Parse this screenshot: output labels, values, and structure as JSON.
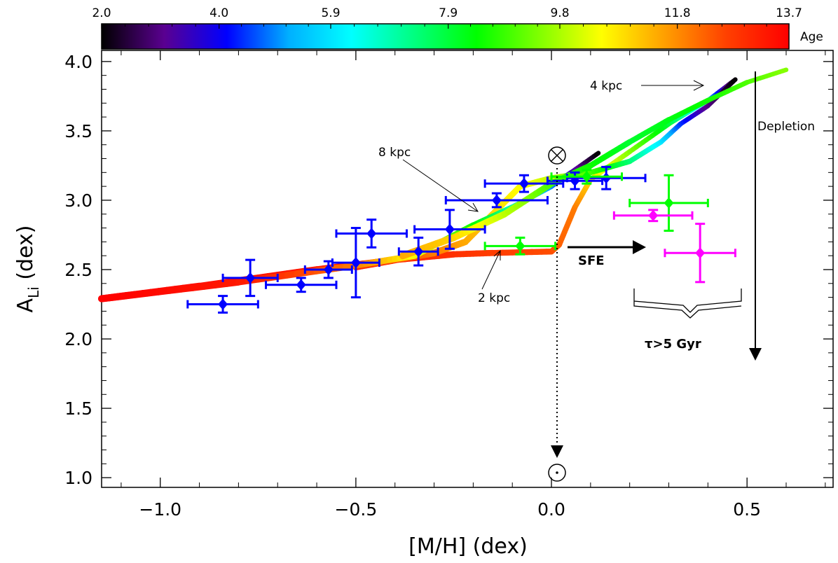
{
  "chart_data": {
    "type": "scatter",
    "xlabel": "[M/H] (dex)",
    "ylabel": "A",
    "ylabel_sub": "Li",
    "ylabel_unit": " (dex)",
    "xlim": [
      -1.15,
      0.72
    ],
    "ylim": [
      0.93,
      4.08
    ],
    "x_ticks": [
      -1.0,
      -0.5,
      0.0,
      0.5
    ],
    "x_tick_labels": [
      "−1.0",
      "−0.5",
      "0.0",
      "0.5"
    ],
    "y_ticks": [
      1.0,
      1.5,
      2.0,
      2.5,
      3.0,
      3.5,
      4.0
    ],
    "y_tick_labels": [
      "1.0",
      "1.5",
      "2.0",
      "2.5",
      "3.0",
      "3.5",
      "4.0"
    ],
    "grid": false,
    "colorbar": {
      "title": "Age",
      "ticks": [
        2.0,
        4.0,
        5.9,
        7.9,
        9.8,
        11.8,
        13.7
      ],
      "tick_labels": [
        "2.0",
        "4.0",
        "5.9",
        "7.9",
        "9.8",
        "11.8",
        "13.7"
      ],
      "range": [
        2.0,
        13.7
      ],
      "colors": [
        "#000000",
        "#5a0090",
        "#0000ff",
        "#00b0ff",
        "#00ffff",
        "#00ff80",
        "#00ff00",
        "#80ff00",
        "#ffff00",
        "#ffa000",
        "#ff4000",
        "#ff0000"
      ]
    },
    "tracks": [
      {
        "name": "2 kpc",
        "points": [
          [
            -1.15,
            2.29
          ],
          [
            -0.9,
            2.38
          ],
          [
            -0.6,
            2.5
          ],
          [
            -0.4,
            2.57
          ],
          [
            -0.25,
            2.61
          ],
          [
            -0.15,
            2.62
          ],
          [
            0.0,
            2.63
          ],
          [
            0.02,
            2.68
          ],
          [
            0.06,
            2.95
          ],
          [
            0.1,
            3.15
          ],
          [
            0.2,
            3.35
          ],
          [
            0.3,
            3.55
          ],
          [
            0.4,
            3.72
          ],
          [
            0.47,
            3.87
          ]
        ],
        "ages": [
          13.7,
          13.5,
          13.3,
          13.1,
          12.9,
          12.7,
          12.5,
          12.3,
          12.0,
          11.0,
          9.5,
          8.0,
          5.5,
          2.0
        ]
      },
      {
        "name": "4 kpc",
        "points": [
          [
            -0.5,
            2.52
          ],
          [
            -0.4,
            2.57
          ],
          [
            -0.3,
            2.62
          ],
          [
            -0.22,
            2.7
          ],
          [
            -0.15,
            2.9
          ],
          [
            -0.08,
            3.1
          ],
          [
            0.0,
            3.16
          ],
          [
            0.1,
            3.2
          ],
          [
            0.2,
            3.28
          ],
          [
            0.28,
            3.42
          ],
          [
            0.33,
            3.55
          ],
          [
            0.4,
            3.68
          ],
          [
            0.47,
            3.87
          ]
        ],
        "ages": [
          13.0,
          12.6,
          12.0,
          11.5,
          11.0,
          10.5,
          10.0,
          9.0,
          7.5,
          6.0,
          4.5,
          3.0,
          2.0
        ]
      },
      {
        "name": "8 kpc",
        "points": [
          [
            -1.15,
            2.29
          ],
          [
            -0.8,
            2.41
          ],
          [
            -0.5,
            2.53
          ],
          [
            -0.35,
            2.6
          ],
          [
            -0.2,
            2.82
          ],
          [
            -0.1,
            2.95
          ],
          [
            0.0,
            3.1
          ],
          [
            0.05,
            3.2
          ],
          [
            0.12,
            3.34
          ]
        ],
        "ages": [
          13.7,
          13.3,
          12.0,
          10.5,
          8.5,
          7.0,
          5.0,
          3.5,
          2.0
        ]
      },
      {
        "name": "",
        "points": [
          [
            -0.38,
            2.6
          ],
          [
            -0.25,
            2.73
          ],
          [
            -0.12,
            2.9
          ],
          [
            0.0,
            3.12
          ],
          [
            0.1,
            3.25
          ],
          [
            0.2,
            3.42
          ],
          [
            0.3,
            3.58
          ],
          [
            0.4,
            3.72
          ],
          [
            0.5,
            3.85
          ],
          [
            0.6,
            3.94
          ]
        ],
        "ages": [
          11.5,
          11.0,
          10.0,
          9.0,
          8.5,
          8.0,
          8.2,
          8.5,
          9.0,
          9.5
        ]
      }
    ],
    "series": [
      {
        "color": "#0000ff",
        "points": [
          {
            "x": -0.84,
            "y": 2.25,
            "xerr": [
              0.09,
              0.09
            ],
            "yerr": [
              0.06,
              0.06
            ]
          },
          {
            "x": -0.64,
            "y": 2.39,
            "xerr": [
              0.09,
              0.09
            ],
            "yerr": [
              0.05,
              0.05
            ]
          },
          {
            "x": -0.77,
            "y": 2.44,
            "xerr": [
              0.07,
              0.07
            ],
            "yerr": [
              0.13,
              0.13
            ]
          },
          {
            "x": -0.57,
            "y": 2.5,
            "xerr": [
              0.06,
              0.06
            ],
            "yerr": [
              0.06,
              0.06
            ]
          },
          {
            "x": -0.5,
            "y": 2.55,
            "xerr": [
              0.06,
              0.06
            ],
            "yerr": [
              0.25,
              0.25
            ]
          },
          {
            "x": -0.46,
            "y": 2.76,
            "xerr": [
              0.09,
              0.09
            ],
            "yerr": [
              0.1,
              0.1
            ]
          },
          {
            "x": -0.34,
            "y": 2.63,
            "xerr": [
              0.05,
              0.05
            ],
            "yerr": [
              0.1,
              0.1
            ]
          },
          {
            "x": -0.26,
            "y": 2.79,
            "xerr": [
              0.09,
              0.09
            ],
            "yerr": [
              0.14,
              0.14
            ]
          },
          {
            "x": -0.14,
            "y": 3.0,
            "xerr": [
              0.13,
              0.13
            ],
            "yerr": [
              0.05,
              0.05
            ]
          },
          {
            "x": -0.07,
            "y": 3.12,
            "xerr": [
              0.1,
              0.1
            ],
            "yerr": [
              0.06,
              0.06
            ]
          },
          {
            "x": 0.06,
            "y": 3.14,
            "xerr": [
              0.07,
              0.07
            ],
            "yerr": [
              0.06,
              0.06
            ]
          },
          {
            "x": 0.14,
            "y": 3.16,
            "xerr": [
              0.1,
              0.1
            ],
            "yerr": [
              0.08,
              0.08
            ]
          }
        ]
      },
      {
        "color": "#00ff00",
        "points": [
          {
            "x": -0.08,
            "y": 2.67,
            "xerr": [
              0.09,
              0.09
            ],
            "yerr": [
              0.06,
              0.06
            ]
          },
          {
            "x": 0.09,
            "y": 3.17,
            "xerr": [
              0.09,
              0.09
            ],
            "yerr": [
              0.05,
              0.05
            ]
          },
          {
            "x": 0.3,
            "y": 2.98,
            "xerr": [
              0.1,
              0.1
            ],
            "yerr": [
              0.2,
              0.2
            ]
          }
        ]
      },
      {
        "color": "#ff00ff",
        "points": [
          {
            "x": 0.26,
            "y": 2.89,
            "xerr": [
              0.1,
              0.1
            ],
            "yerr": [
              0.04,
              0.04
            ]
          },
          {
            "x": 0.38,
            "y": 2.62,
            "xerr": [
              0.09,
              0.09
            ],
            "yerr": [
              0.21,
              0.21
            ]
          }
        ]
      }
    ],
    "annotations": {
      "label_8kpc": "8 kpc",
      "label_4kpc": "4 kpc",
      "label_2kpc": "2 kpc",
      "sfe": "SFE",
      "depletion": "Depletion",
      "tau": "τ>5 Gyr"
    }
  }
}
